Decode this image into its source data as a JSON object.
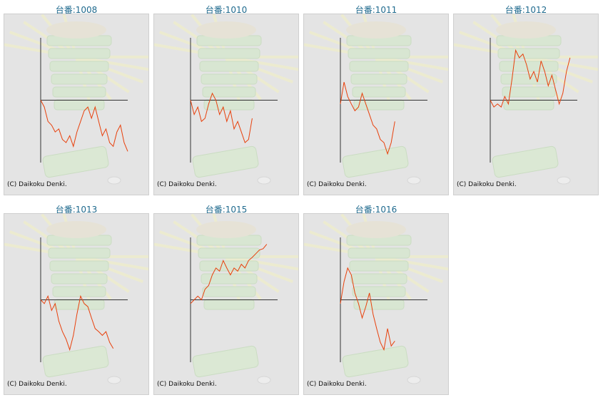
{
  "chart_data": [
    {
      "type": "line",
      "title": "台番:1008",
      "watermark": "(C) Daikoku Denki.",
      "color": "#e8400c",
      "xlim": [
        0,
        24
      ],
      "ylim": [
        -100,
        100
      ],
      "yticks": [
        0
      ],
      "values": [
        0,
        -11,
        -34,
        -40,
        -51,
        -46,
        -63,
        -68,
        -57,
        -74,
        -51,
        -34,
        -17,
        -11,
        -29,
        -11,
        -34,
        -57,
        -46,
        -68,
        -74,
        -51,
        -40,
        -68,
        -82
      ]
    },
    {
      "type": "line",
      "title": "台番:1010",
      "watermark": "(C) Daikoku Denki.",
      "color": "#e8400c",
      "xlim": [
        0,
        24
      ],
      "ylim": [
        -100,
        100
      ],
      "yticks": [
        0
      ],
      "values": [
        0,
        -23,
        -11,
        -34,
        -29,
        -6,
        11,
        0,
        -23,
        -11,
        -34,
        -17,
        -46,
        -34,
        -51,
        -68,
        -63,
        -29
      ]
    },
    {
      "type": "line",
      "title": "台番:1011",
      "watermark": "(C) Daikoku Denki.",
      "color": "#e8400c",
      "xlim": [
        0,
        24
      ],
      "ylim": [
        -100,
        100
      ],
      "yticks": [
        0
      ],
      "values": [
        -6,
        29,
        6,
        -6,
        -17,
        -11,
        11,
        -6,
        -23,
        -40,
        -46,
        -63,
        -68,
        -86,
        -68,
        -34
      ]
    },
    {
      "type": "line",
      "title": "台番:1012",
      "watermark": "(C) Daikoku Denki.",
      "color": "#e8400c",
      "xlim": [
        0,
        24
      ],
      "ylim": [
        -100,
        100
      ],
      "yticks": [
        0
      ],
      "values": [
        0,
        -11,
        -6,
        -11,
        6,
        -6,
        34,
        80,
        68,
        74,
        57,
        34,
        46,
        29,
        63,
        46,
        23,
        40,
        17,
        -6,
        11,
        46,
        68
      ]
    },
    {
      "type": "line",
      "title": "台番:1013",
      "watermark": "(C) Daikoku Denki.",
      "color": "#e8400c",
      "xlim": [
        0,
        24
      ],
      "ylim": [
        -100,
        100
      ],
      "yticks": [
        0
      ],
      "values": [
        0,
        -6,
        6,
        -17,
        -6,
        -34,
        -51,
        -63,
        -80,
        -57,
        -23,
        6,
        -6,
        -11,
        -29,
        -46,
        -51,
        -57,
        -51,
        -68,
        -78
      ]
    },
    {
      "type": "line",
      "title": "台番:1015",
      "watermark": "(C) Daikoku Denki.",
      "color": "#e8400c",
      "xlim": [
        0,
        24
      ],
      "ylim": [
        -100,
        100
      ],
      "yticks": [
        0
      ],
      "values": [
        -6,
        0,
        6,
        0,
        17,
        23,
        40,
        51,
        46,
        63,
        51,
        40,
        51,
        46,
        57,
        51,
        63,
        68,
        74,
        80,
        82,
        89
      ]
    },
    {
      "type": "line",
      "title": "台番:1016",
      "watermark": "(C) Daikoku Denki.",
      "color": "#e8400c",
      "xlim": [
        0,
        24
      ],
      "ylim": [
        -100,
        100
      ],
      "yticks": [
        0
      ],
      "values": [
        -6,
        29,
        51,
        40,
        11,
        -6,
        -29,
        -11,
        11,
        -23,
        -46,
        -68,
        -80,
        -46,
        -74,
        -66
      ]
    }
  ]
}
